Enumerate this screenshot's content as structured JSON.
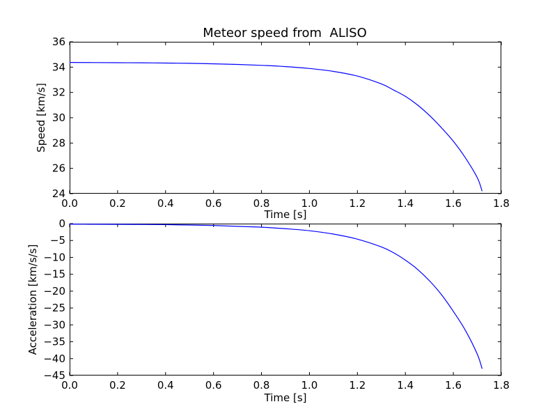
{
  "chart_data": [
    {
      "type": "line",
      "title": "Meteor speed from  ALISO",
      "xlabel": "Time [s]",
      "ylabel": "Speed [km/s]",
      "xlim": [
        0.0,
        1.8
      ],
      "ylim": [
        24,
        36
      ],
      "xticks": [
        "0.0",
        "0.2",
        "0.4",
        "0.6",
        "0.8",
        "1.0",
        "1.2",
        "1.4",
        "1.6",
        "1.8"
      ],
      "yticks": [
        "24",
        "26",
        "28",
        "30",
        "32",
        "34",
        "36"
      ],
      "grid": false,
      "line_color": "#0000ff",
      "series": [
        {
          "x": [
            0.0,
            0.1,
            0.2,
            0.3,
            0.4,
            0.5,
            0.6,
            0.7,
            0.8,
            0.9,
            1.0,
            1.1,
            1.2,
            1.3,
            1.35,
            1.4,
            1.45,
            1.5,
            1.55,
            1.6,
            1.65,
            1.7,
            1.72
          ],
          "y": [
            34.37,
            34.36,
            34.35,
            34.34,
            34.32,
            34.3,
            34.26,
            34.21,
            34.14,
            34.04,
            33.89,
            33.66,
            33.29,
            32.67,
            32.2,
            31.69,
            31.02,
            30.19,
            29.22,
            28.14,
            26.84,
            25.26,
            24.2
          ]
        }
      ]
    },
    {
      "type": "line",
      "title": "",
      "xlabel": "Time [s]",
      "ylabel": "Acceleration [km/s/s]",
      "xlim": [
        0.0,
        1.8
      ],
      "ylim": [
        -45,
        0
      ],
      "xticks": [
        "0.0",
        "0.2",
        "0.4",
        "0.6",
        "0.8",
        "1.0",
        "1.2",
        "1.4",
        "1.6",
        "1.8"
      ],
      "yticks": [
        "−45",
        "−40",
        "−35",
        "−30",
        "−25",
        "−20",
        "−15",
        "−10",
        "−5",
        "0"
      ],
      "grid": false,
      "line_color": "#0000ff",
      "series": [
        {
          "x": [
            0.0,
            0.1,
            0.2,
            0.3,
            0.4,
            0.5,
            0.6,
            0.7,
            0.8,
            0.9,
            1.0,
            1.1,
            1.2,
            1.3,
            1.35,
            1.4,
            1.45,
            1.5,
            1.55,
            1.6,
            1.65,
            1.7,
            1.72
          ],
          "y": [
            -0.15,
            -0.18,
            -0.2,
            -0.25,
            -0.3,
            -0.42,
            -0.55,
            -0.8,
            -1.05,
            -1.5,
            -2.1,
            -3.1,
            -4.6,
            -6.9,
            -8.6,
            -10.8,
            -13.5,
            -16.9,
            -21.0,
            -26.0,
            -31.6,
            -38.7,
            -43.0
          ]
        }
      ]
    }
  ]
}
